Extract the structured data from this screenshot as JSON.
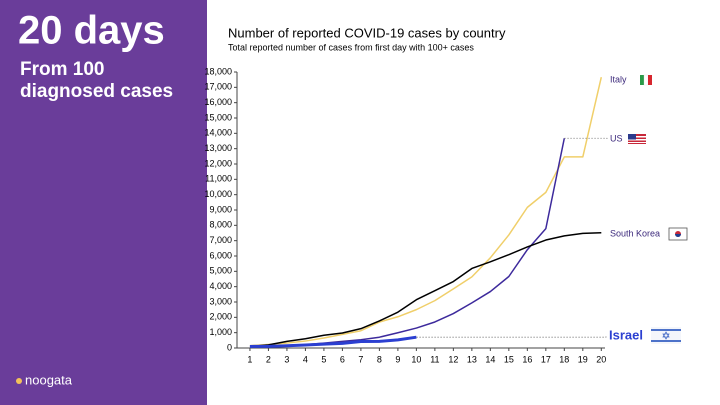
{
  "panel": {
    "headline": "20 days",
    "subline": [
      "From 100",
      "diagnosed cases"
    ],
    "logo": "noogata"
  },
  "chart_data": {
    "type": "line",
    "title": "Number of reported COVID-19 cases by country",
    "subtitle": "Total reported number of cases from first day with 100+ cases",
    "x": [
      1,
      2,
      3,
      4,
      5,
      6,
      7,
      8,
      9,
      10,
      11,
      12,
      13,
      14,
      15,
      16,
      17,
      18,
      19,
      20
    ],
    "xlim": [
      0.3,
      20.2
    ],
    "xticks": [
      1,
      2,
      3,
      4,
      5,
      6,
      7,
      8,
      9,
      10,
      11,
      12,
      13,
      14,
      15,
      16,
      17,
      18,
      19,
      20
    ],
    "ylim": [
      0,
      18000
    ],
    "yticks": [
      0,
      {
        "value": 1000,
        "label": "1,000"
      },
      {
        "value": 2000,
        "label": "2,000"
      },
      {
        "value": 3000,
        "label": "3,000"
      },
      {
        "value": 4000,
        "label": "4,000"
      },
      {
        "value": 5000,
        "label": "5,000"
      },
      {
        "value": 6000,
        "label": "6,000"
      },
      {
        "value": 7000,
        "label": "7,000"
      },
      {
        "value": 8000,
        "label": "8,000"
      },
      {
        "value": 9000,
        "label": "9,000"
      },
      {
        "value": 10000,
        "label": "10,000"
      },
      {
        "value": 11000,
        "label": "11,000"
      },
      {
        "value": 12000,
        "label": "12,000"
      },
      {
        "value": 13000,
        "label": "13,000"
      },
      {
        "value": 14000,
        "label": "14,000"
      },
      {
        "value": 15000,
        "label": "15,000"
      },
      {
        "value": 16000,
        "label": "16,000"
      },
      {
        "value": 17000,
        "label": "17,000"
      },
      {
        "value": 18000,
        "label": "18,000"
      }
    ],
    "grid": false,
    "series": [
      {
        "name": "Italy",
        "color": "#f0cf6a",
        "width": 1.5,
        "values": [
          155,
          229,
          322,
          453,
          655,
          888,
          1128,
          1694,
          2036,
          2502,
          3089,
          3858,
          4636,
          5883,
          7375,
          9172,
          10149,
          12462,
          12462,
          17660
        ]
      },
      {
        "name": "US",
        "color": "#3d2a9c",
        "width": 1.5,
        "values": [
          100,
          124,
          158,
          221,
          319,
          435,
          541,
          704,
          994,
          1301,
          1697,
          2247,
          2943,
          3680,
          4663,
          6411,
          7786,
          13680,
          null,
          null
        ]
      },
      {
        "name": "South Korea",
        "color": "#000000",
        "width": 1.5,
        "values": [
          104,
          204,
          433,
          602,
          833,
          977,
          1261,
          1766,
          2337,
          3150,
          3736,
          4335,
          5186,
          5621,
          6088,
          6593,
          7041,
          7314,
          7478,
          7513
        ]
      },
      {
        "name": "Israel",
        "color": "#2b3fd1",
        "width": 3,
        "values": [
          100,
          109,
          143,
          193,
          250,
          304,
          427,
          433,
          529,
          705,
          null,
          null,
          null,
          null,
          null,
          null,
          null,
          null,
          null,
          null
        ]
      }
    ]
  }
}
